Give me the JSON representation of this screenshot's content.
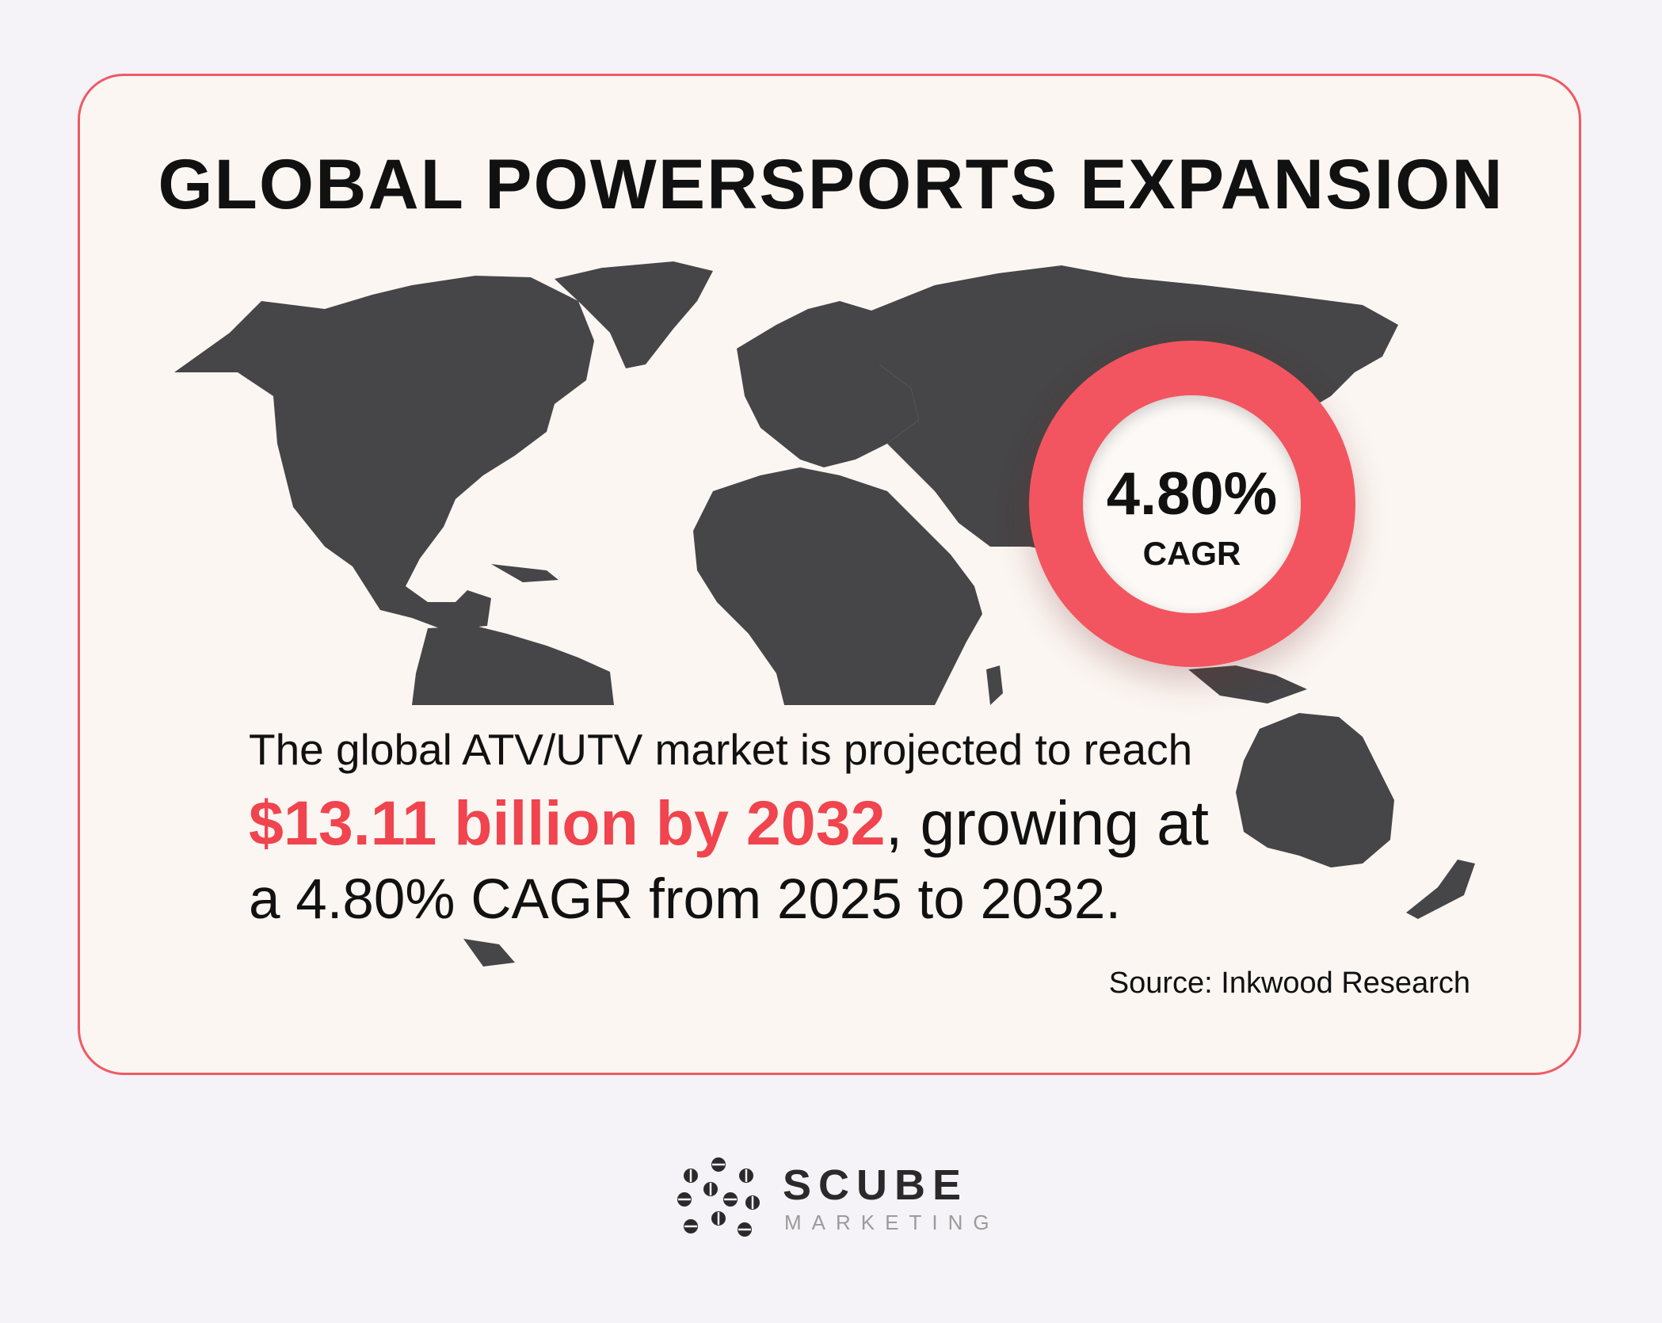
{
  "title": "GLOBAL POWERSPORTS EXPANSION",
  "badge": {
    "value": "4.80%",
    "label": "CAGR"
  },
  "body": {
    "line1": "The global ATV/UTV market is projected to reach",
    "highlight": "$13.11 billion by 2032",
    "line2_rest": ", growing at",
    "line3": "a 4.80% CAGR from 2025 to 2032."
  },
  "source": "Source: Inkwood Research",
  "brand": {
    "name": "SCUBE",
    "tagline": "MARKETING"
  },
  "colors": {
    "accent": "#f0444e",
    "card_border": "#ef5a64",
    "map_land": "#464547",
    "card_background": "#fbf6f2",
    "page_background": "#f5f3f7"
  }
}
